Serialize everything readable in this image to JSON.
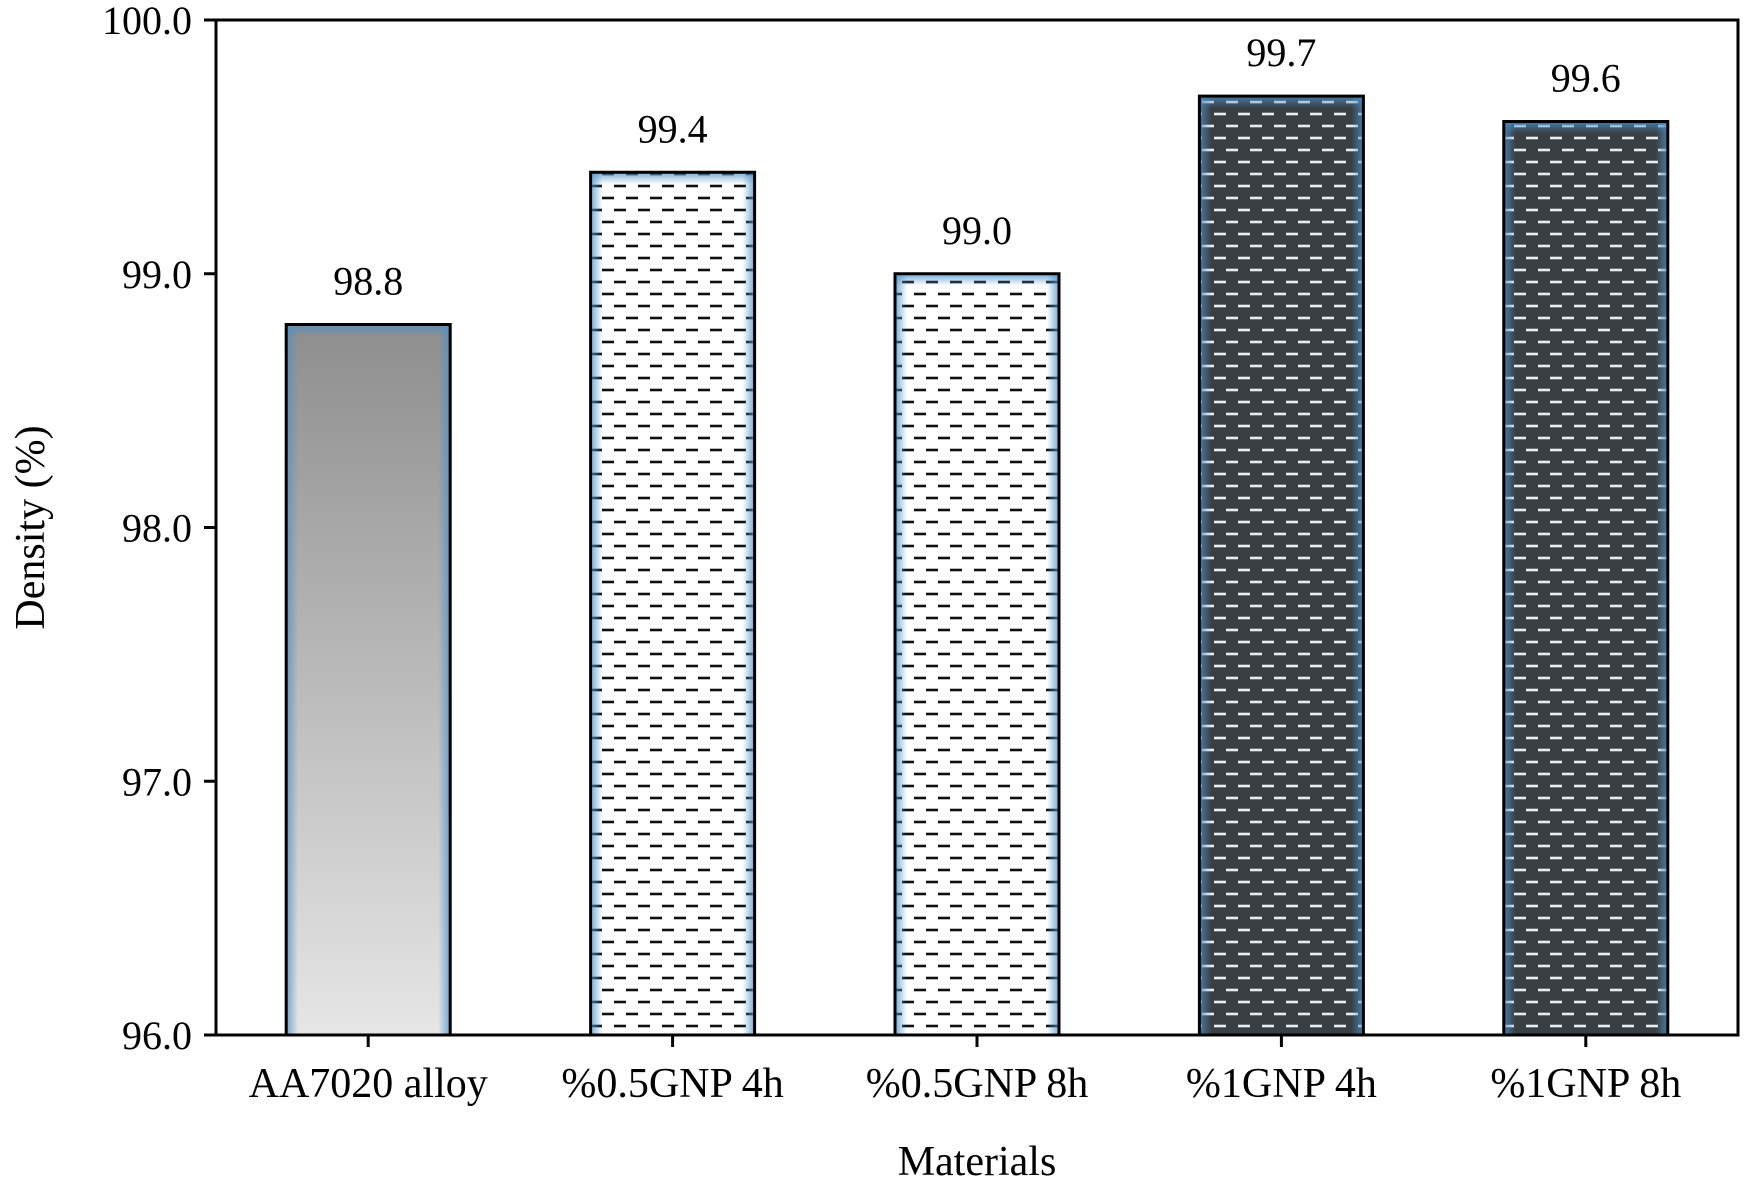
{
  "chart_data": {
    "type": "bar",
    "title": "",
    "xlabel": "Materials",
    "ylabel": "Density (%)",
    "ylim": [
      96.0,
      100.0
    ],
    "yticks": [
      "96.0",
      "97.0",
      "98.0",
      "99.0",
      "100.0"
    ],
    "grid": false,
    "categories": [
      "AA7020 alloy",
      "%0.5GNP 4h",
      "%0.5GNP 8h",
      "%1GNP 4h",
      "%1GNP 8h"
    ],
    "values": [
      98.8,
      99.4,
      99.0,
      99.7,
      99.6
    ],
    "data_labels": [
      "98.8",
      "99.4",
      "99.0",
      "99.7",
      "99.6"
    ],
    "bar_styles": [
      "gradient-gray",
      "dash-light",
      "dash-light",
      "dash-dark",
      "dash-dark"
    ],
    "colors": {
      "bar_edge": "#000000",
      "glow": "#4a90c8",
      "dark_fill": "#3a3f44",
      "dash_dark": "#111111",
      "dash_light": "#e8eef2",
      "gray_top": "#8e8e8e",
      "gray_bottom": "#e6e6e6"
    }
  }
}
